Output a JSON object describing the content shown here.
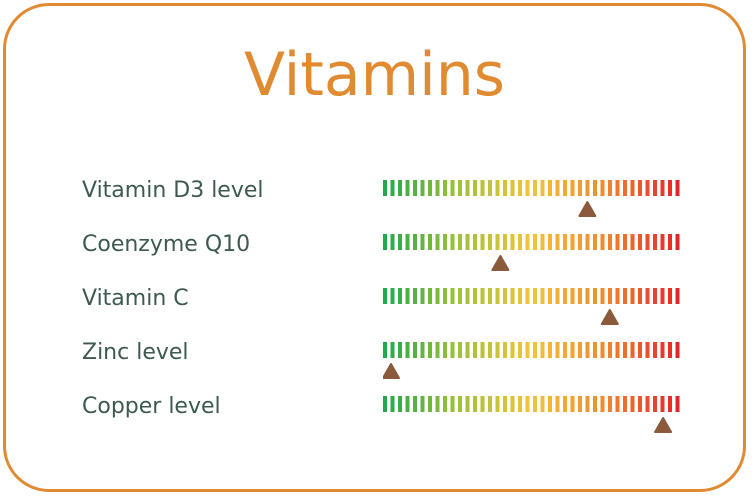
{
  "title": "Vitamins",
  "colors": {
    "frame": "#e08a32",
    "title": "#e08a32",
    "label": "#3d5a4e",
    "marker": "#8b5a3c",
    "gradient": [
      "#22a84a",
      "#9ec13a",
      "#f2c43a",
      "#f0892f",
      "#e4262a"
    ]
  },
  "rows": [
    {
      "label": "Vitamin D3 level",
      "level": 0.7
    },
    {
      "label": "Coenzyme Q10",
      "level": 0.39
    },
    {
      "label": "Vitamin C",
      "level": 0.78
    },
    {
      "label": "Zinc level",
      "level": 0.0
    },
    {
      "label": "Copper level",
      "level": 0.97
    }
  ]
}
